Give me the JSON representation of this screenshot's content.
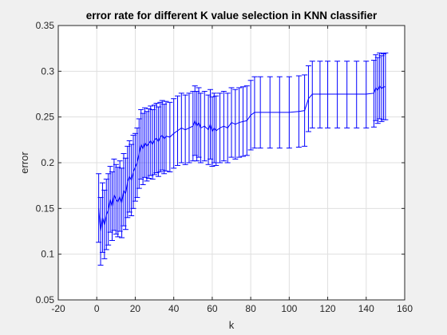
{
  "chart_data": {
    "type": "line",
    "title": "error rate for different K value selection in KNN classifier",
    "xlabel": "k",
    "ylabel": "error",
    "xlim": [
      -20,
      160
    ],
    "ylim": [
      0.05,
      0.35
    ],
    "xticks": [
      "-20",
      "0",
      "20",
      "40",
      "60",
      "80",
      "100",
      "120",
      "140",
      "160"
    ],
    "yticks": [
      "0.05",
      "0.1",
      "0.15",
      "0.2",
      "0.25",
      "0.3",
      "0.35"
    ],
    "grid": true,
    "errorbars": true,
    "series": [
      {
        "color": "#0000ff",
        "points": [
          [
            1,
            0.15,
            0.188,
            0.113
          ],
          [
            2,
            0.125,
            0.162,
            0.088
          ],
          [
            3,
            0.14,
            0.178,
            0.102
          ],
          [
            4,
            0.132,
            0.17,
            0.095
          ],
          [
            5,
            0.143,
            0.182,
            0.105
          ],
          [
            6,
            0.148,
            0.188,
            0.11
          ],
          [
            7,
            0.16,
            0.196,
            0.124
          ],
          [
            8,
            0.152,
            0.19,
            0.115
          ],
          [
            9,
            0.165,
            0.204,
            0.126
          ],
          [
            10,
            0.16,
            0.198,
            0.122
          ],
          [
            11,
            0.157,
            0.195,
            0.119
          ],
          [
            12,
            0.163,
            0.202,
            0.125
          ],
          [
            13,
            0.156,
            0.194,
            0.118
          ],
          [
            14,
            0.17,
            0.21,
            0.131
          ],
          [
            15,
            0.166,
            0.205,
            0.127
          ],
          [
            16,
            0.179,
            0.218,
            0.14
          ],
          [
            17,
            0.185,
            0.224,
            0.146
          ],
          [
            18,
            0.181,
            0.22,
            0.142
          ],
          [
            19,
            0.19,
            0.23,
            0.15
          ],
          [
            20,
            0.195,
            0.232,
            0.158
          ],
          [
            21,
            0.2,
            0.238,
            0.162
          ],
          [
            22,
            0.21,
            0.248,
            0.172
          ],
          [
            23,
            0.22,
            0.258,
            0.182
          ],
          [
            24,
            0.215,
            0.254,
            0.176
          ],
          [
            25,
            0.222,
            0.26,
            0.184
          ],
          [
            26,
            0.218,
            0.256,
            0.18
          ],
          [
            27,
            0.221,
            0.259,
            0.183
          ],
          [
            28,
            0.224,
            0.262,
            0.186
          ],
          [
            29,
            0.22,
            0.258,
            0.182
          ],
          [
            30,
            0.225,
            0.263,
            0.187
          ],
          [
            31,
            0.227,
            0.265,
            0.189
          ],
          [
            32,
            0.223,
            0.261,
            0.185
          ],
          [
            33,
            0.228,
            0.266,
            0.19
          ],
          [
            34,
            0.23,
            0.268,
            0.192
          ],
          [
            35,
            0.226,
            0.264,
            0.188
          ],
          [
            36,
            0.229,
            0.267,
            0.191
          ],
          [
            38,
            0.228,
            0.266,
            0.19
          ],
          [
            40,
            0.232,
            0.27,
            0.194
          ],
          [
            42,
            0.235,
            0.273,
            0.197
          ],
          [
            44,
            0.238,
            0.276,
            0.2
          ],
          [
            46,
            0.236,
            0.274,
            0.198
          ],
          [
            48,
            0.238,
            0.276,
            0.2
          ],
          [
            50,
            0.24,
            0.278,
            0.202
          ],
          [
            51,
            0.246,
            0.284,
            0.208
          ],
          [
            52,
            0.24,
            0.278,
            0.202
          ],
          [
            53,
            0.244,
            0.282,
            0.206
          ],
          [
            54,
            0.238,
            0.276,
            0.2
          ],
          [
            56,
            0.24,
            0.278,
            0.202
          ],
          [
            58,
            0.236,
            0.274,
            0.198
          ],
          [
            59,
            0.242,
            0.28,
            0.204
          ],
          [
            60,
            0.234,
            0.272,
            0.196
          ],
          [
            61,
            0.238,
            0.276,
            0.2
          ],
          [
            62,
            0.235,
            0.273,
            0.197
          ],
          [
            64,
            0.238,
            0.276,
            0.2
          ],
          [
            66,
            0.24,
            0.278,
            0.202
          ],
          [
            68,
            0.238,
            0.276,
            0.2
          ],
          [
            70,
            0.244,
            0.282,
            0.206
          ],
          [
            72,
            0.242,
            0.28,
            0.204
          ],
          [
            74,
            0.244,
            0.282,
            0.206
          ],
          [
            76,
            0.245,
            0.283,
            0.207
          ],
          [
            78,
            0.246,
            0.284,
            0.208
          ],
          [
            80,
            0.252,
            0.29,
            0.214
          ],
          [
            82,
            0.255,
            0.294,
            0.216
          ],
          [
            85,
            0.255,
            0.294,
            0.216
          ],
          [
            90,
            0.255,
            0.294,
            0.216
          ],
          [
            95,
            0.255,
            0.294,
            0.216
          ],
          [
            100,
            0.255,
            0.294,
            0.216
          ],
          [
            105,
            0.256,
            0.295,
            0.217
          ],
          [
            108,
            0.257,
            0.296,
            0.218
          ],
          [
            110,
            0.27,
            0.306,
            0.234
          ],
          [
            112,
            0.275,
            0.311,
            0.238
          ],
          [
            116,
            0.275,
            0.311,
            0.238
          ],
          [
            120,
            0.275,
            0.311,
            0.238
          ],
          [
            125,
            0.275,
            0.311,
            0.238
          ],
          [
            130,
            0.275,
            0.311,
            0.238
          ],
          [
            135,
            0.275,
            0.311,
            0.238
          ],
          [
            140,
            0.275,
            0.311,
            0.238
          ],
          [
            144,
            0.276,
            0.312,
            0.239
          ],
          [
            145,
            0.282,
            0.318,
            0.246
          ],
          [
            146,
            0.279,
            0.315,
            0.243
          ],
          [
            147,
            0.284,
            0.32,
            0.248
          ],
          [
            148,
            0.281,
            0.317,
            0.245
          ],
          [
            149,
            0.283,
            0.319,
            0.247
          ],
          [
            150,
            0.283,
            0.32,
            0.247
          ]
        ]
      }
    ]
  }
}
